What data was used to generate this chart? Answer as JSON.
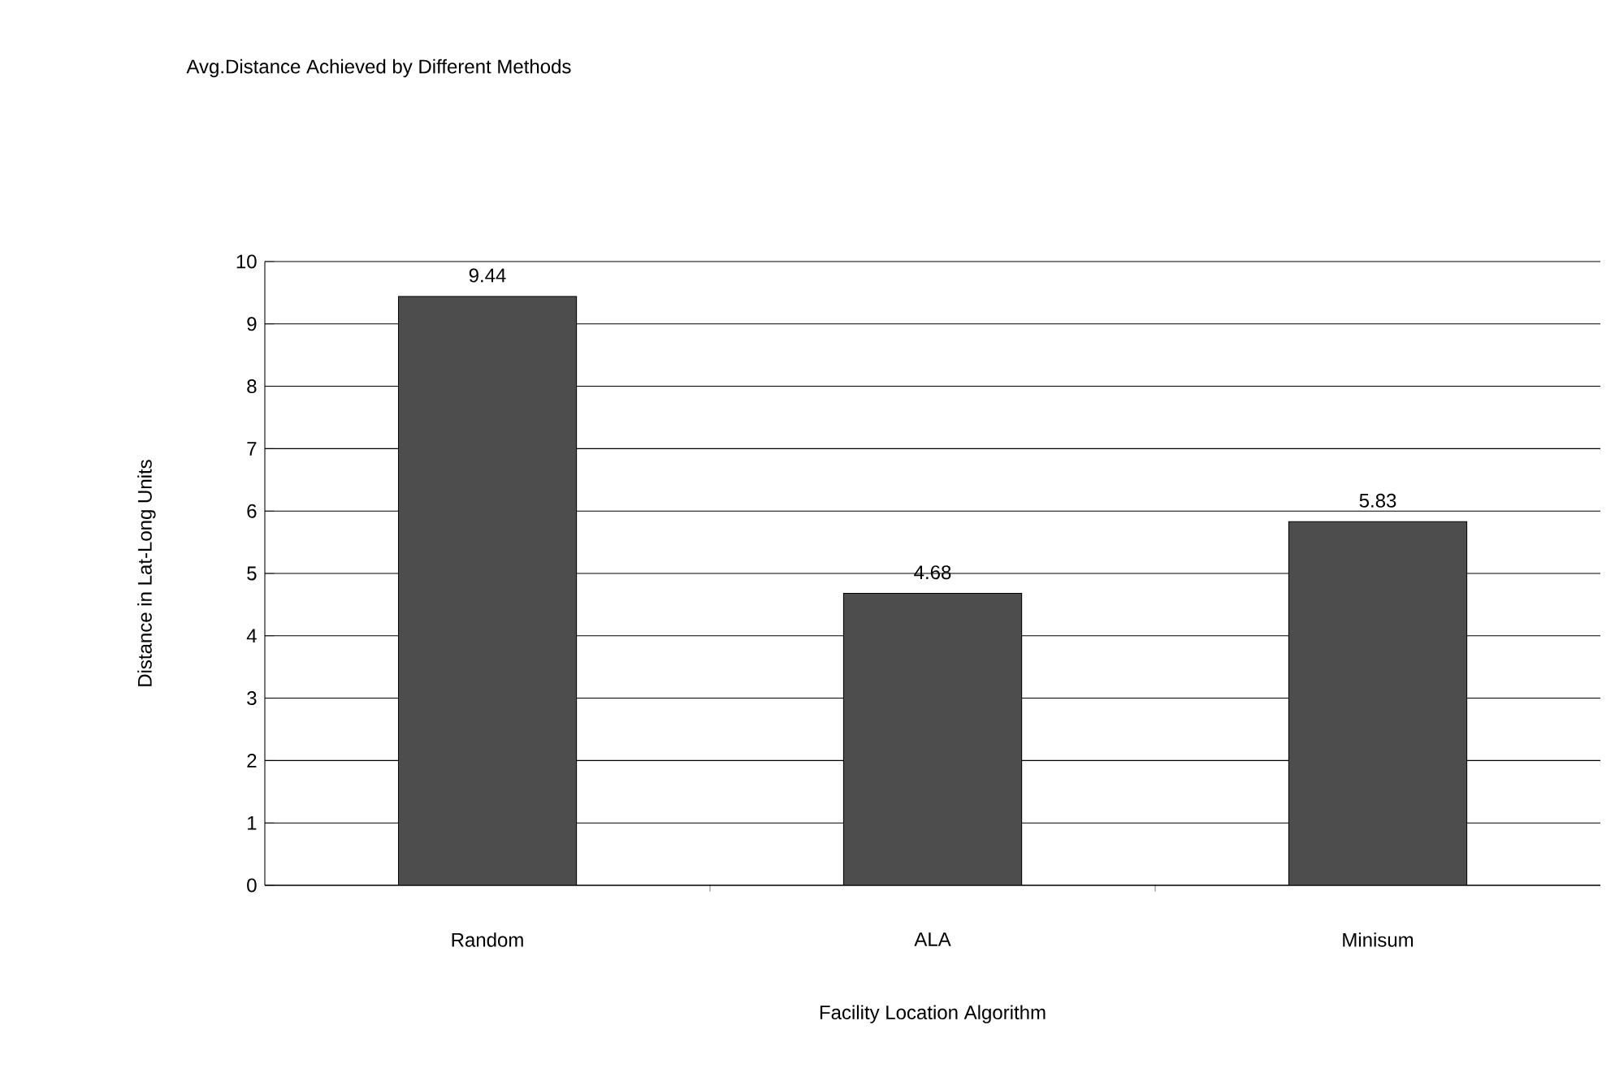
{
  "chart_data": {
    "type": "bar",
    "title": "Avg.Distance Achieved by Different Methods",
    "xlabel": "Facility Location Algorithm",
    "ylabel": "Distance in Lat-Long Units",
    "categories": [
      "Random",
      "ALA",
      "Minisum"
    ],
    "values": [
      9.44,
      4.68,
      5.83
    ],
    "color": "#4d4d4d",
    "ylim": [
      0,
      10
    ],
    "yticks": [
      0,
      1,
      2,
      3,
      4,
      5,
      6,
      7,
      8,
      9,
      10
    ],
    "grid": "y",
    "data_labels": true
  }
}
